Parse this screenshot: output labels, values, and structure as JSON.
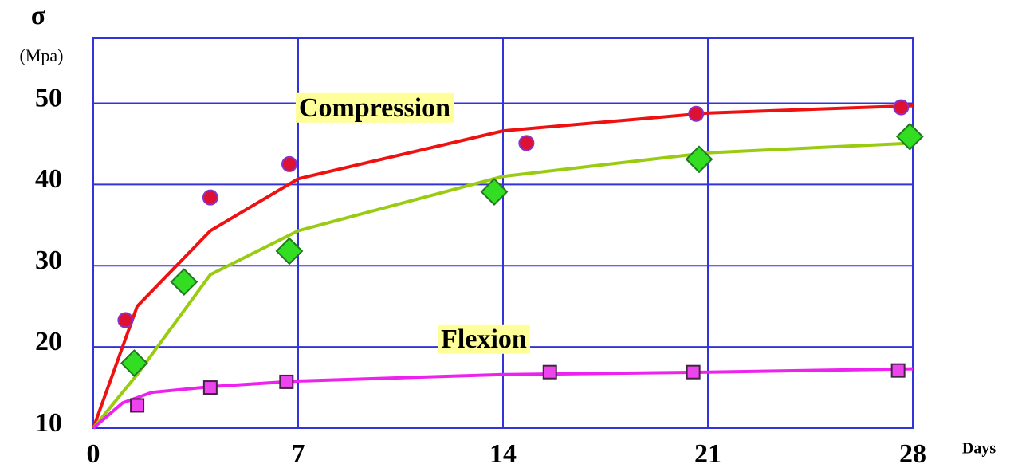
{
  "chart_data": {
    "type": "scatter",
    "y_label": "σ",
    "y_unit": "(Mpa)",
    "x_label": "Days",
    "xlim": [
      0,
      28
    ],
    "xticks": [
      0,
      7,
      14,
      21,
      28
    ],
    "ylim": [
      10,
      58
    ],
    "yticks": [
      10,
      20,
      30,
      40,
      50
    ],
    "grid": true,
    "annotations": [
      "Compression",
      "Flexion"
    ],
    "series": [
      {
        "color": "#dd1133",
        "marker": "circle",
        "x": [
          1.1,
          4.0,
          6.7,
          14.8,
          20.6,
          27.6
        ],
        "values": [
          23.3,
          38.4,
          42.5,
          45.1,
          48.7,
          49.5
        ]
      },
      {
        "color": "#33dd22",
        "marker": "diamond",
        "x": [
          1.4,
          3.1,
          6.7,
          13.7,
          20.7,
          27.9
        ],
        "values": [
          18.0,
          28.0,
          31.8,
          39.1,
          43.1,
          45.9
        ]
      },
      {
        "color": "#ee44ee",
        "marker": "square",
        "x": [
          1.5,
          4.0,
          6.6,
          15.6,
          20.5,
          27.5
        ],
        "values": [
          12.8,
          15.0,
          15.7,
          16.9,
          16.9,
          17.1
        ]
      }
    ],
    "fits": [
      {
        "color": "#ee1111",
        "x": [
          0,
          1.5,
          4,
          7,
          14,
          21,
          28
        ],
        "values": [
          10,
          25,
          34.3,
          40.7,
          46.6,
          48.8,
          49.7
        ]
      },
      {
        "color": "#99cc11",
        "x": [
          0,
          1.5,
          4,
          7,
          14,
          21,
          28
        ],
        "values": [
          10,
          16.6,
          28.9,
          34.3,
          41,
          43.9,
          45.1
        ]
      },
      {
        "color": "#ee22ee",
        "x": [
          0,
          1,
          2,
          4,
          7,
          14,
          21,
          28
        ],
        "values": [
          10,
          13.1,
          14.4,
          15.1,
          15.8,
          16.6,
          16.9,
          17.3
        ]
      }
    ]
  }
}
